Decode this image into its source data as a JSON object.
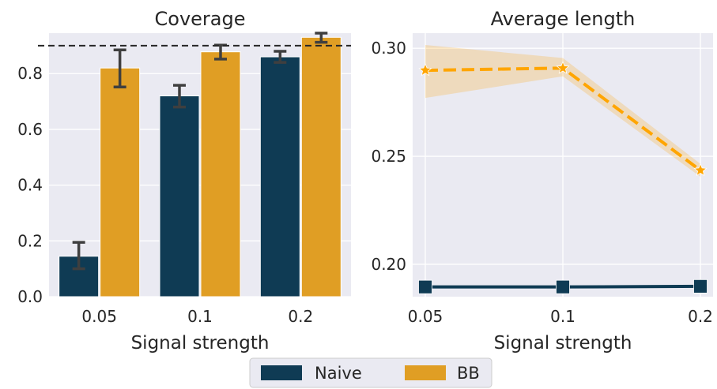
{
  "colors": {
    "naive": "#0f3b54",
    "bb": "#e09e24",
    "bb_line": "#ffa500",
    "panel_bg": "#eaeaf2",
    "grid": "#ffffff",
    "errorbar": "#3f3f3f",
    "reference_line": "#262626"
  },
  "chart_data": [
    {
      "type": "bar",
      "title": "Coverage",
      "xlabel": "Signal strength",
      "ylabel": "",
      "categories": [
        "0.05",
        "0.1",
        "0.2"
      ],
      "ylim": [
        0,
        0.945
      ],
      "yticks": [
        0.0,
        0.2,
        0.4,
        0.6,
        0.8
      ],
      "ytick_labels": [
        "0.0",
        "0.2",
        "0.4",
        "0.6",
        "0.8"
      ],
      "reference_line": {
        "y": 0.9,
        "style": "dashed"
      },
      "grid": true,
      "series": [
        {
          "name": "Naive",
          "values": [
            0.145,
            0.72,
            0.86
          ],
          "err_low": [
            0.1,
            0.68,
            0.84
          ],
          "err_high": [
            0.195,
            0.758,
            0.88
          ]
        },
        {
          "name": "BB",
          "values": [
            0.82,
            0.878,
            0.93
          ],
          "err_low": [
            0.752,
            0.852,
            0.912
          ],
          "err_high": [
            0.885,
            0.902,
            0.945
          ]
        }
      ]
    },
    {
      "type": "line",
      "title": "Average length",
      "xlabel": "Signal strength",
      "ylabel": "",
      "categories": [
        "0.05",
        "0.1",
        "0.2"
      ],
      "ylim": [
        0.185,
        0.307
      ],
      "yticks": [
        0.2,
        0.25,
        0.3
      ],
      "ytick_labels": [
        "0.20",
        "0.25",
        "0.30"
      ],
      "grid": true,
      "series": [
        {
          "name": "Naive",
          "marker": "square",
          "linestyle": "solid",
          "values": [
            0.1895,
            0.1895,
            0.1898
          ]
        },
        {
          "name": "BB",
          "marker": "star",
          "linestyle": "dashed",
          "values": [
            0.2898,
            0.2908,
            0.2435
          ],
          "band_low": [
            0.277,
            0.287,
            0.2405
          ],
          "band_high": [
            0.3015,
            0.2955,
            0.2465
          ]
        }
      ]
    }
  ],
  "legend": {
    "placement": "bottom-center",
    "items": [
      {
        "label": "Naive",
        "color_key": "naive"
      },
      {
        "label": "BB",
        "color_key": "bb"
      }
    ]
  }
}
